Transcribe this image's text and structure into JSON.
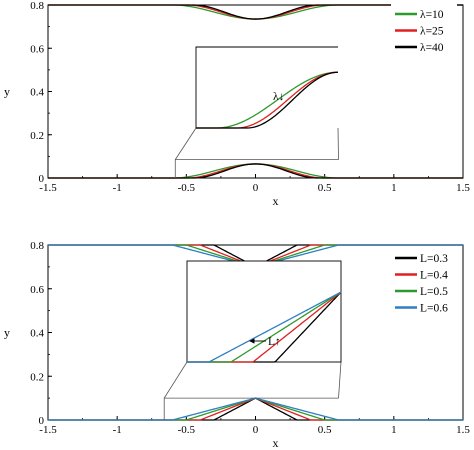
{
  "chart_data": [
    {
      "type": "line",
      "panel": "top",
      "xlabel": "x",
      "ylabel": "y",
      "xlim": [
        -1.5,
        1.5
      ],
      "ylim": [
        0,
        0.8
      ],
      "xticks": [
        -1.5,
        -1,
        -0.5,
        0,
        0.5,
        1,
        1.5
      ],
      "xtick_labels": [
        "-1.5",
        "-1",
        "-0.5",
        "0",
        "0.5",
        "1",
        "1.5"
      ],
      "yticks": [
        0,
        0.2,
        0.4,
        0.6,
        0.8
      ],
      "ytick_labels": [
        "0",
        "0.2",
        "0.4",
        "0.6",
        "0.8"
      ],
      "legend_position": "top-right",
      "shape": "smooth-bump",
      "series": [
        {
          "name": "λ=10",
          "color": "#2e9a2e",
          "half_width": 0.6,
          "height": 0.065
        },
        {
          "name": "λ=25",
          "color": "#e02020",
          "half_width": 0.5,
          "height": 0.065
        },
        {
          "name": "λ=40",
          "color": "#000000",
          "half_width": 0.45,
          "height": 0.065
        }
      ],
      "annotation": "λ↓",
      "annotation_arrow": "none"
    },
    {
      "type": "line",
      "panel": "bottom",
      "xlabel": "x",
      "ylabel": "y",
      "xlim": [
        -1.5,
        1.5
      ],
      "ylim": [
        0,
        0.8
      ],
      "xticks": [
        -1.5,
        -1,
        -0.5,
        0,
        0.5,
        1,
        1.5
      ],
      "xtick_labels": [
        "-1.5",
        "-1",
        "-0.5",
        "0",
        "0.5",
        "1",
        "1.5"
      ],
      "yticks": [
        0,
        0.2,
        0.4,
        0.6,
        0.8
      ],
      "ytick_labels": [
        "0",
        "0.2",
        "0.4",
        "0.6",
        "0.8"
      ],
      "legend_position": "top-right",
      "shape": "triangle",
      "series": [
        {
          "name": "L=0.3",
          "color": "#000000",
          "half_width": 0.3,
          "height": 0.1
        },
        {
          "name": "L=0.4",
          "color": "#e02020",
          "half_width": 0.4,
          "height": 0.1
        },
        {
          "name": "L=0.5",
          "color": "#2e9a2e",
          "half_width": 0.5,
          "height": 0.1
        },
        {
          "name": "L=0.6",
          "color": "#2f7fc1",
          "half_width": 0.6,
          "height": 0.1
        }
      ],
      "annotation": "L↑",
      "annotation_arrow": "left"
    }
  ]
}
